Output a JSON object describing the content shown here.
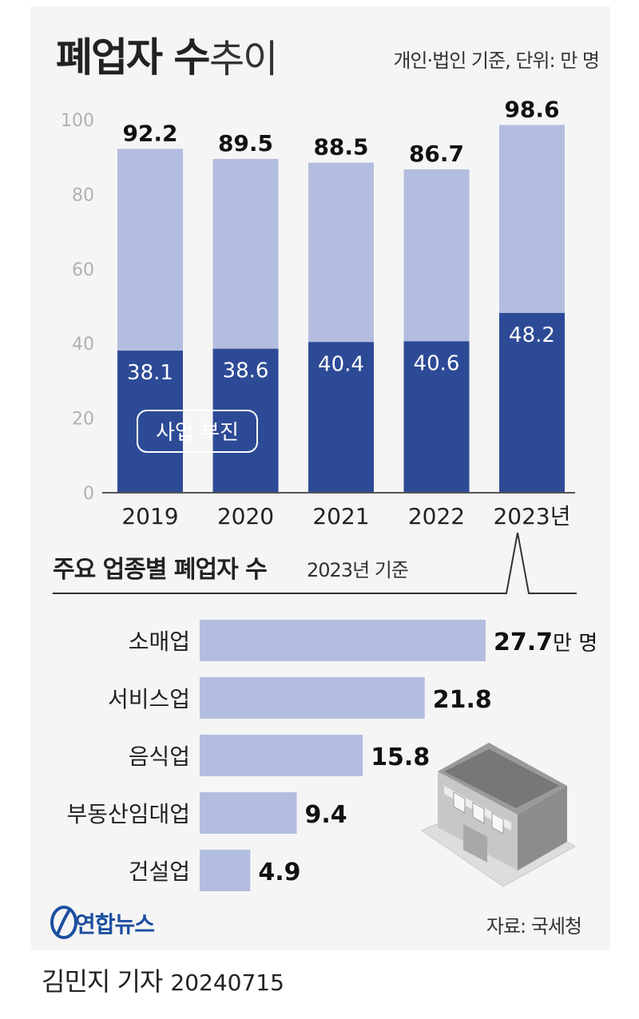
{
  "header": {
    "title_bold": "폐업자 수",
    "title_light": "추이",
    "note": "개인·법인 기준, 단위: 만 명"
  },
  "sub_header": {
    "title_bold": "주요 업종별 폐업자 수",
    "title_light": "2023년 기준"
  },
  "source": "자료: 국세청",
  "logo": "연합뉴스",
  "reporter": {
    "name": "김민지 기자",
    "date": "20240715"
  },
  "colors": {
    "light_bar": "#b3bddf",
    "dark_bar": "#2d4a96",
    "industry_bar": "#b3bddf",
    "logo": "#1c4fa0",
    "background": "#f5f5f5"
  },
  "chart_data": [
    {
      "type": "bar",
      "stacked": false,
      "categories": [
        "2019",
        "2020",
        "2021",
        "2022",
        "2023년"
      ],
      "series": [
        {
          "name": "",
          "values": [
            92.2,
            89.5,
            88.5,
            86.7,
            98.6
          ]
        },
        {
          "name": "사업 부진",
          "values": [
            38.1,
            38.6,
            40.4,
            40.6,
            48.2
          ]
        }
      ],
      "yticks": [
        0,
        20,
        40,
        60,
        80,
        100
      ],
      "ylim": [
        0,
        100
      ],
      "grid": false,
      "legend": "bottom-left"
    },
    {
      "type": "bar",
      "orientation": "horizontal",
      "categories": [
        "소매업",
        "서비스업",
        "음식업",
        "부동산임대업",
        "건설업"
      ],
      "values": [
        27.7,
        21.8,
        15.8,
        9.4,
        4.9
      ],
      "first_value_unit": "만 명"
    }
  ]
}
